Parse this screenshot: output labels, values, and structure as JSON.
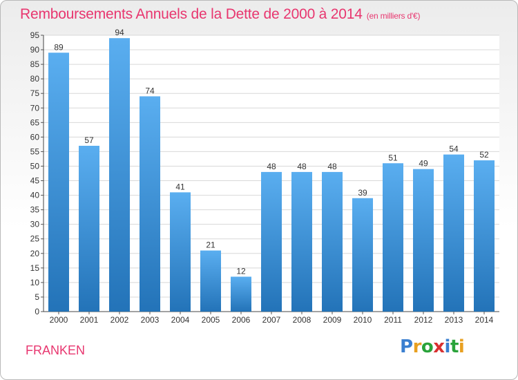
{
  "header": {
    "title": "Remboursements Annuels de la Dette de 2000 à 2014",
    "unit": "(en milliers d'€)"
  },
  "footer": {
    "city": "FRANKEN",
    "logo": {
      "letters": [
        "P",
        "r",
        "o",
        "x",
        "i",
        "t",
        "i"
      ],
      "colors": [
        "#3a7fd0",
        "#e8a020",
        "#2aa33a",
        "#d83030",
        "#3a7fd0",
        "#2aa33a",
        "#e8a020"
      ]
    }
  },
  "colors": {
    "title": "#e8366f",
    "bar_top": "#5aaef0",
    "bar_bottom": "#2373b8"
  },
  "chart_data": {
    "type": "bar",
    "title": "Remboursements Annuels de la Dette de 2000 à 2014",
    "categories": [
      "2000",
      "2001",
      "2002",
      "2003",
      "2004",
      "2005",
      "2006",
      "2007",
      "2008",
      "2009",
      "2010",
      "2011",
      "2012",
      "2013",
      "2014"
    ],
    "values": [
      89,
      57,
      94,
      74,
      41,
      21,
      12,
      48,
      48,
      48,
      39,
      51,
      49,
      54,
      52
    ],
    "ylim": [
      0,
      95
    ],
    "yticks": [
      0,
      5,
      10,
      15,
      20,
      25,
      30,
      35,
      40,
      45,
      50,
      55,
      60,
      65,
      70,
      75,
      80,
      85,
      90,
      95
    ],
    "grid": true
  }
}
